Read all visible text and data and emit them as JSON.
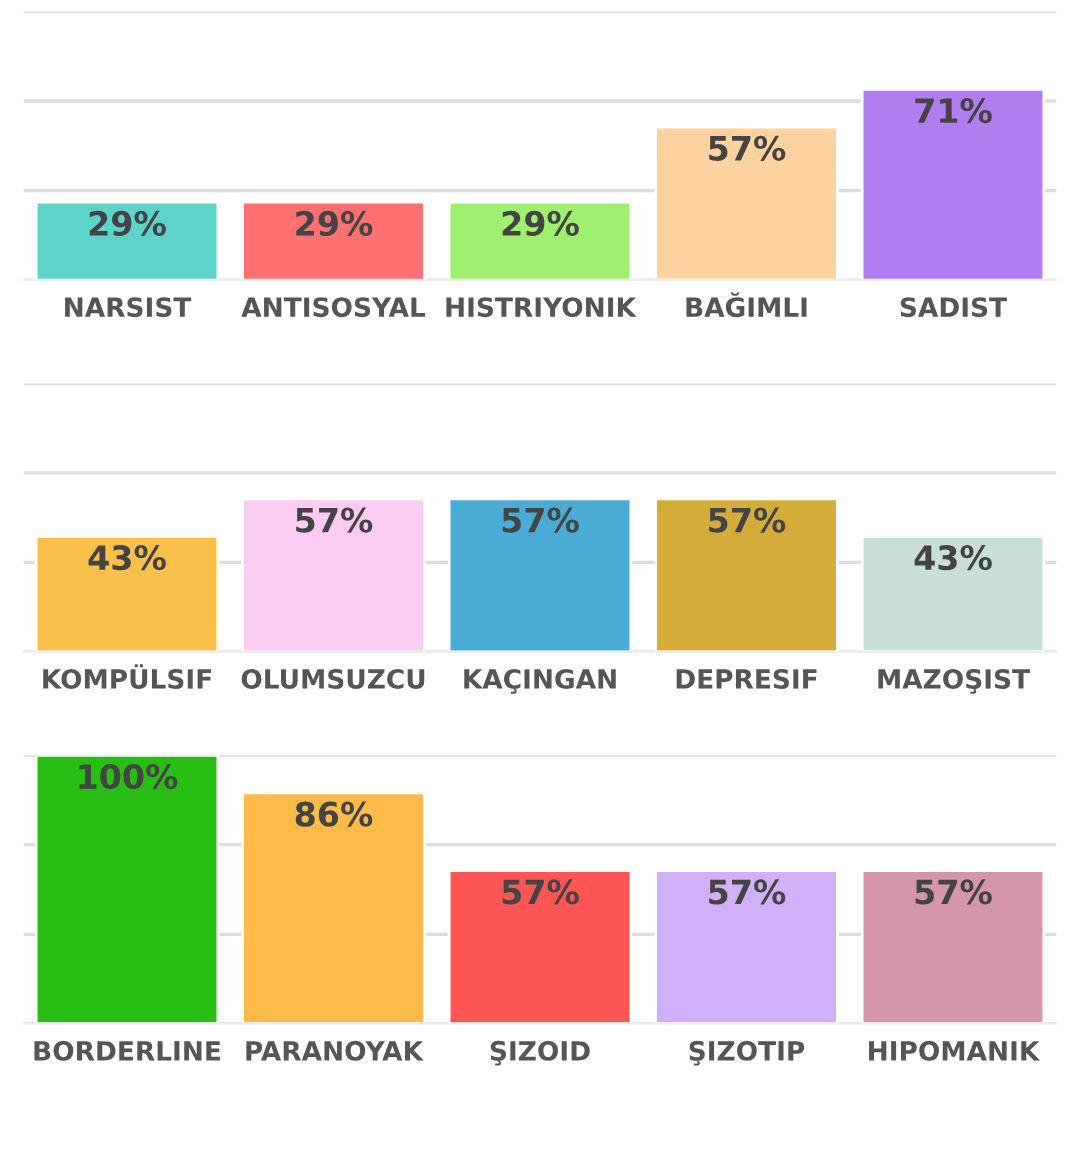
{
  "chart_data": [
    {
      "type": "bar",
      "categories": [
        "NARSIST",
        "ANTISOSYAL",
        "HISTRIYONIK",
        "BAĞIMLI",
        "SADIST"
      ],
      "values": [
        29,
        29,
        29,
        57,
        71
      ],
      "value_labels": [
        "29%",
        "29%",
        "29%",
        "57%",
        "71%"
      ],
      "colors": [
        "#5dd3c9",
        "#ff7070",
        "#a0f070",
        "#ffd3a0",
        "#b07ef0"
      ],
      "ylim": [
        0,
        100
      ],
      "yticks": [
        {
          "value": 0,
          "label": null
        },
        {
          "value": 33.3,
          "label": null
        },
        {
          "value": 66.7,
          "label": null
        },
        {
          "value": 100,
          "label": null
        }
      ],
      "grid": "y",
      "tick_labels": "x"
    },
    {
      "type": "bar",
      "categories": [
        "KOMPÜLSIF",
        "OLUMSUZCU",
        "KAÇINGAN",
        "DEPRESIF",
        "MAZOŞIST"
      ],
      "values": [
        43,
        57,
        57,
        57,
        43
      ],
      "value_labels": [
        "43%",
        "57%",
        "57%",
        "57%",
        "43%"
      ],
      "colors": [
        "#fac04a",
        "#fcccf0",
        "#4aabd6",
        "#d4ac3a",
        "#c9e0d8"
      ],
      "ylim": [
        0,
        100
      ],
      "yticks": [
        {
          "value": 0,
          "label": null
        },
        {
          "value": 33.3,
          "label": null
        },
        {
          "value": 66.7,
          "label": null
        },
        {
          "value": 100,
          "label": null
        }
      ],
      "grid": "y",
      "tick_labels": "x"
    },
    {
      "type": "bar",
      "categories": [
        "BORDERLINE",
        "PARANOYAK",
        "ŞIZOID",
        "ŞIZOTIP",
        "HIPOMANIK"
      ],
      "values": [
        100,
        86,
        57,
        57,
        57
      ],
      "value_labels": [
        "100%",
        "86%",
        "57%",
        "57%",
        "57%"
      ],
      "colors": [
        "#28be14",
        "#ffbb48",
        "#ff5555",
        "#d0b0f8",
        "#d496a8"
      ],
      "ylim": [
        0,
        100
      ],
      "yticks": [
        {
          "value": 0,
          "label": null
        },
        {
          "value": 33.3,
          "label": null
        },
        {
          "value": 66.7,
          "label": null
        },
        {
          "value": 100,
          "label": null
        }
      ],
      "grid": "y",
      "tick_labels": "x"
    }
  ]
}
